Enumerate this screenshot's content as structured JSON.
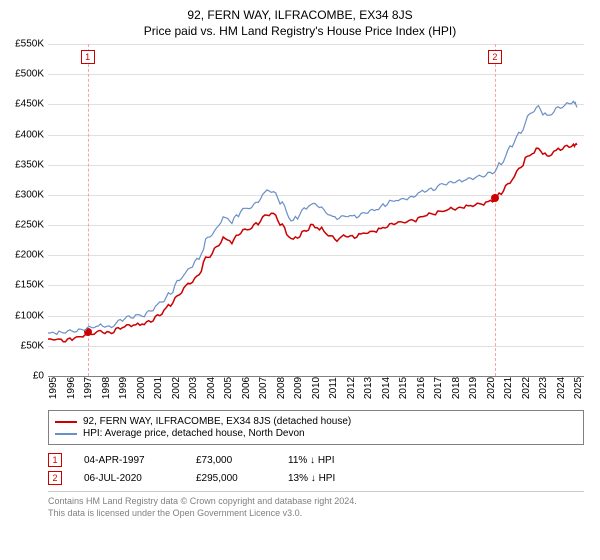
{
  "title_main": "92, FERN WAY, ILFRACOMBE, EX34 8JS",
  "title_sub": "Price paid vs. HM Land Registry's House Price Index (HPI)",
  "chart": {
    "type": "line",
    "background_color": "#ffffff",
    "grid_color": "#e0e0e0",
    "axis_color": "#808080",
    "xlim": [
      1995,
      2025.6
    ],
    "ylim": [
      0,
      550000
    ],
    "ytick_step": 50000,
    "ytick_labels": [
      "£0",
      "£50K",
      "£100K",
      "£150K",
      "£200K",
      "£250K",
      "£300K",
      "£350K",
      "£400K",
      "£450K",
      "£500K",
      "£550K"
    ],
    "xticks": [
      1995,
      1996,
      1997,
      1998,
      1999,
      2000,
      2001,
      2002,
      2003,
      2004,
      2005,
      2006,
      2007,
      2008,
      2009,
      2010,
      2011,
      2012,
      2013,
      2014,
      2015,
      2016,
      2017,
      2018,
      2019,
      2020,
      2021,
      2022,
      2023,
      2024,
      2025
    ],
    "series": [
      {
        "key": "red",
        "color": "#cc0000",
        "line_width": 1.5,
        "points": [
          [
            1995,
            62000
          ],
          [
            1995.5,
            63000
          ],
          [
            1996,
            60000
          ],
          [
            1996.5,
            64000
          ],
          [
            1997,
            67000
          ],
          [
            1997.26,
            73000
          ],
          [
            1997.5,
            72000
          ],
          [
            1998,
            75000
          ],
          [
            1998.5,
            72000
          ],
          [
            1999,
            80000
          ],
          [
            1999.5,
            85000
          ],
          [
            2000,
            86000
          ],
          [
            2000.5,
            88000
          ],
          [
            2001,
            95000
          ],
          [
            2001.5,
            107000
          ],
          [
            2002,
            120000
          ],
          [
            2002.5,
            140000
          ],
          [
            2003,
            153000
          ],
          [
            2003.5,
            165000
          ],
          [
            2004,
            195000
          ],
          [
            2004.5,
            210000
          ],
          [
            2005,
            230000
          ],
          [
            2005.5,
            225000
          ],
          [
            2006,
            240000
          ],
          [
            2006.5,
            245000
          ],
          [
            2007,
            255000
          ],
          [
            2007.5,
            270000
          ],
          [
            2008,
            268000
          ],
          [
            2008.5,
            245000
          ],
          [
            2009,
            225000
          ],
          [
            2009.5,
            240000
          ],
          [
            2010,
            250000
          ],
          [
            2010.5,
            248000
          ],
          [
            2011,
            235000
          ],
          [
            2011.5,
            228000
          ],
          [
            2012,
            235000
          ],
          [
            2012.5,
            232000
          ],
          [
            2013,
            237000
          ],
          [
            2013.5,
            240000
          ],
          [
            2014,
            245000
          ],
          [
            2014.5,
            253000
          ],
          [
            2015,
            255000
          ],
          [
            2015.5,
            257000
          ],
          [
            2016,
            260000
          ],
          [
            2016.5,
            268000
          ],
          [
            2017,
            270000
          ],
          [
            2017.5,
            275000
          ],
          [
            2018,
            278000
          ],
          [
            2018.5,
            280000
          ],
          [
            2019,
            283000
          ],
          [
            2019.5,
            285000
          ],
          [
            2020,
            288000
          ],
          [
            2020.51,
            295000
          ],
          [
            2021,
            310000
          ],
          [
            2021.5,
            330000
          ],
          [
            2022,
            350000
          ],
          [
            2022.5,
            370000
          ],
          [
            2023,
            378000
          ],
          [
            2023.5,
            365000
          ],
          [
            2024,
            375000
          ],
          [
            2024.5,
            380000
          ],
          [
            2025,
            385000
          ],
          [
            2025.2,
            383000
          ]
        ]
      },
      {
        "key": "blue",
        "color": "#6a8fc7",
        "line_width": 1.2,
        "points": [
          [
            1995,
            72000
          ],
          [
            1995.5,
            73000
          ],
          [
            1996,
            75000
          ],
          [
            1996.5,
            76000
          ],
          [
            1997,
            78000
          ],
          [
            1997.5,
            82000
          ],
          [
            1998,
            85000
          ],
          [
            1998.5,
            83000
          ],
          [
            1999,
            92000
          ],
          [
            1999.5,
            98000
          ],
          [
            2000,
            100000
          ],
          [
            2000.5,
            102000
          ],
          [
            2001,
            112000
          ],
          [
            2001.5,
            125000
          ],
          [
            2002,
            140000
          ],
          [
            2002.5,
            162000
          ],
          [
            2003,
            178000
          ],
          [
            2003.5,
            192000
          ],
          [
            2004,
            225000
          ],
          [
            2004.5,
            242000
          ],
          [
            2005,
            265000
          ],
          [
            2005.5,
            258000
          ],
          [
            2006,
            275000
          ],
          [
            2006.5,
            280000
          ],
          [
            2007,
            292000
          ],
          [
            2007.5,
            310000
          ],
          [
            2008,
            305000
          ],
          [
            2008.5,
            280000
          ],
          [
            2009,
            258000
          ],
          [
            2009.5,
            275000
          ],
          [
            2010,
            286000
          ],
          [
            2010.5,
            283000
          ],
          [
            2011,
            270000
          ],
          [
            2011.5,
            262000
          ],
          [
            2012,
            268000
          ],
          [
            2012.5,
            265000
          ],
          [
            2013,
            272000
          ],
          [
            2013.5,
            275000
          ],
          [
            2014,
            282000
          ],
          [
            2014.5,
            290000
          ],
          [
            2015,
            293000
          ],
          [
            2015.5,
            295000
          ],
          [
            2016,
            300000
          ],
          [
            2016.5,
            308000
          ],
          [
            2017,
            312000
          ],
          [
            2017.5,
            318000
          ],
          [
            2018,
            322000
          ],
          [
            2018.5,
            325000
          ],
          [
            2019,
            328000
          ],
          [
            2019.5,
            330000
          ],
          [
            2020,
            335000
          ],
          [
            2020.5,
            340000
          ],
          [
            2021,
            362000
          ],
          [
            2021.5,
            385000
          ],
          [
            2022,
            408000
          ],
          [
            2022.5,
            435000
          ],
          [
            2023,
            448000
          ],
          [
            2023.5,
            430000
          ],
          [
            2024,
            445000
          ],
          [
            2024.5,
            450000
          ],
          [
            2025,
            458000
          ],
          [
            2025.2,
            445000
          ]
        ]
      }
    ],
    "markers": [
      {
        "x": 1997.26,
        "y": 73000,
        "color": "#cc0000",
        "size": 8,
        "callout": "1"
      },
      {
        "x": 2020.51,
        "y": 295000,
        "color": "#cc0000",
        "size": 8,
        "callout": "2"
      }
    ],
    "vlines": [
      {
        "x": 1997.26,
        "color": "#f4a6a6"
      },
      {
        "x": 2020.51,
        "color": "#f4a6a6"
      }
    ]
  },
  "legend": {
    "border_color": "#808080",
    "items": [
      {
        "color": "#cc0000",
        "label": "92, FERN WAY, ILFRACOMBE, EX34 8JS (detached house)"
      },
      {
        "color": "#6a8fc7",
        "label": "HPI: Average price, detached house, North Devon"
      }
    ]
  },
  "events": [
    {
      "num": "1",
      "date": "04-APR-1997",
      "price": "£73,000",
      "pct": "11% ↓ HPI"
    },
    {
      "num": "2",
      "date": "06-JUL-2020",
      "price": "£295,000",
      "pct": "13% ↓ HPI"
    }
  ],
  "footer_line1": "Contains HM Land Registry data © Crown copyright and database right 2024.",
  "footer_line2": "This data is licensed under the Open Government Licence v3.0.",
  "label_fontsize": 10,
  "title_fontsize": 12
}
